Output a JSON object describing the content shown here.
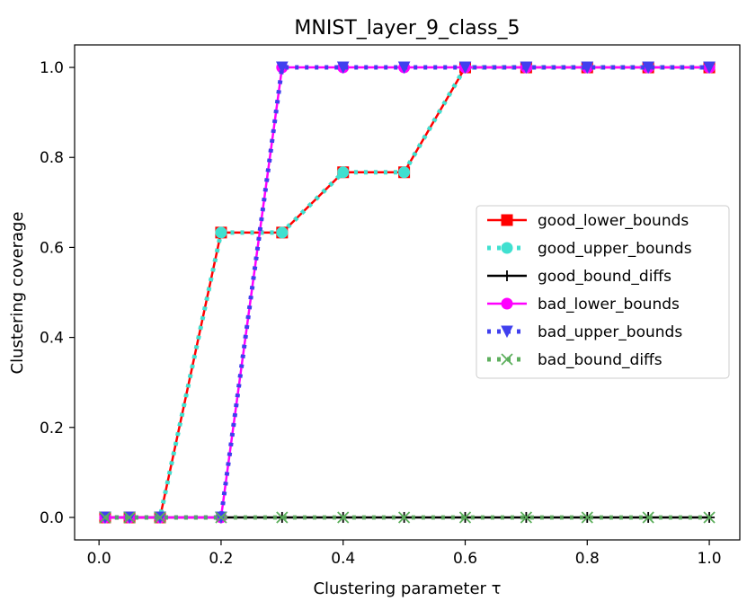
{
  "chart_data": {
    "type": "line",
    "title": "MNIST_layer_9_class_5",
    "xlabel": "Clustering parameter τ",
    "ylabel": "Clustering coverage",
    "xlim": [
      -0.04,
      1.05
    ],
    "ylim": [
      -0.05,
      1.05
    ],
    "xticks": [
      "0.0",
      "0.2",
      "0.4",
      "0.6",
      "0.8",
      "1.0"
    ],
    "yticks": [
      "0.0",
      "0.2",
      "0.4",
      "0.6",
      "0.8",
      "1.0"
    ],
    "grid": false,
    "legend_position": "center-right",
    "x": [
      0.01,
      0.05,
      0.1,
      0.2,
      0.3,
      0.4,
      0.5,
      0.6,
      0.7,
      0.8,
      0.9,
      1.0
    ],
    "series": [
      {
        "name": "good_lower_bounds",
        "color": "#ff0000",
        "style": "solid",
        "marker": "square",
        "values": [
          0.0,
          0.0,
          0.0,
          0.633,
          0.633,
          0.767,
          0.767,
          1.0,
          1.0,
          1.0,
          1.0,
          1.0
        ]
      },
      {
        "name": "good_upper_bounds",
        "color": "#40e0d0",
        "style": "dotted",
        "marker": "circle",
        "values": [
          0.0,
          0.0,
          0.0,
          0.633,
          0.633,
          0.767,
          0.767,
          1.0,
          1.0,
          1.0,
          1.0,
          1.0
        ]
      },
      {
        "name": "good_bound_diffs",
        "color": "#000000",
        "style": "solid",
        "marker": "plus",
        "values": [
          0.0,
          0.0,
          0.0,
          0.0,
          0.0,
          0.0,
          0.0,
          0.0,
          0.0,
          0.0,
          0.0,
          0.0
        ]
      },
      {
        "name": "bad_lower_bounds",
        "color": "#ff00ff",
        "style": "solid",
        "marker": "circle",
        "values": [
          0.0,
          0.0,
          0.0,
          0.0,
          1.0,
          1.0,
          1.0,
          1.0,
          1.0,
          1.0,
          1.0,
          1.0
        ]
      },
      {
        "name": "bad_upper_bounds",
        "color": "#4040ee",
        "style": "dotted",
        "marker": "triangle",
        "values": [
          0.0,
          0.0,
          0.0,
          0.0,
          1.0,
          1.0,
          1.0,
          1.0,
          1.0,
          1.0,
          1.0,
          1.0
        ]
      },
      {
        "name": "bad_bound_diffs",
        "color": "#5daf5d",
        "style": "dotted",
        "marker": "x",
        "values": [
          0.0,
          0.0,
          0.0,
          0.0,
          0.0,
          0.0,
          0.0,
          0.0,
          0.0,
          0.0,
          0.0,
          0.0
        ]
      }
    ]
  }
}
